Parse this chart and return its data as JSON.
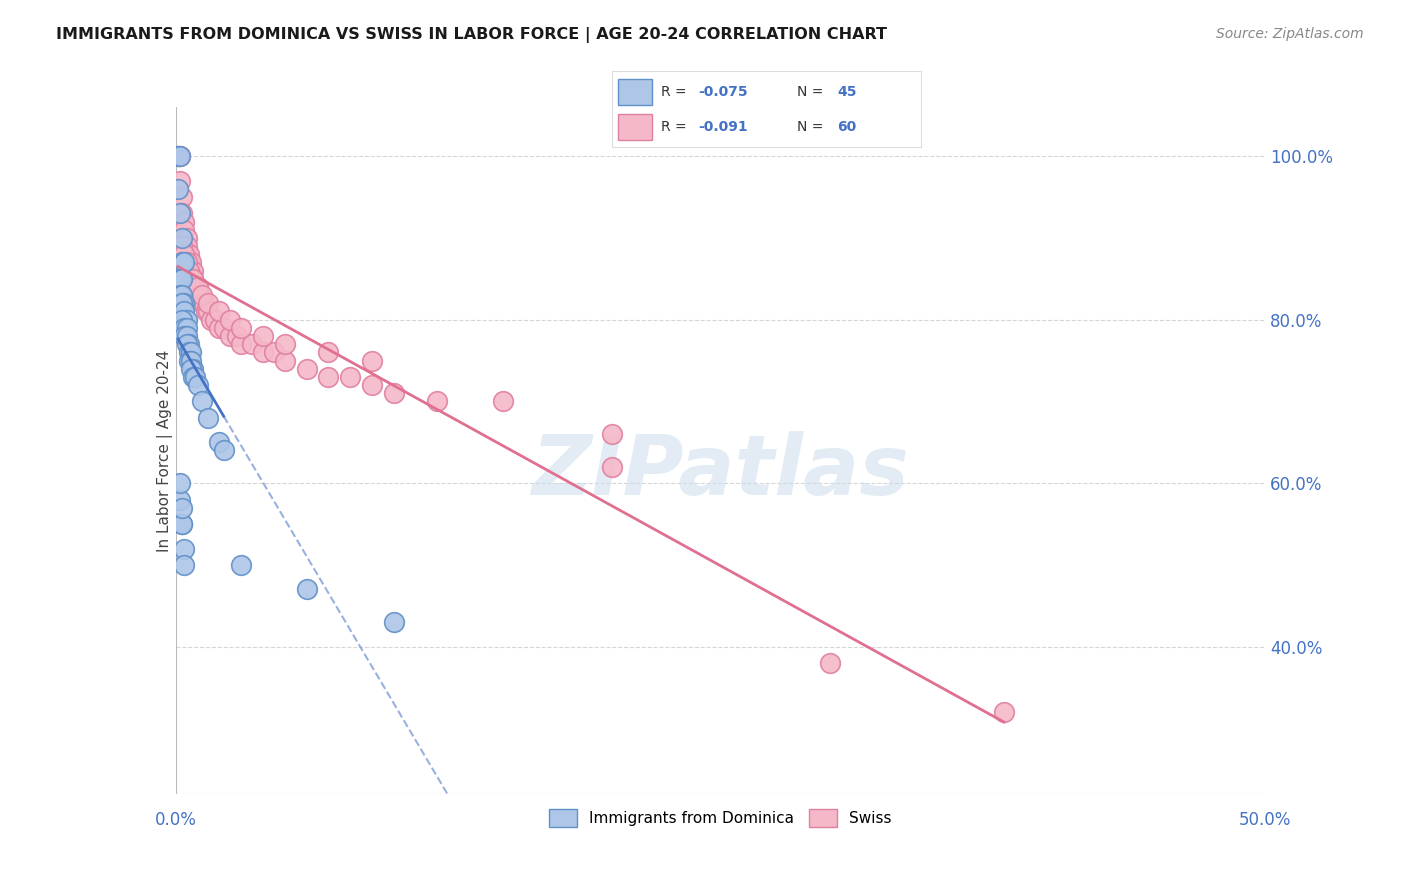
{
  "title": "IMMIGRANTS FROM DOMINICA VS SWISS IN LABOR FORCE | AGE 20-24 CORRELATION CHART",
  "source": "Source: ZipAtlas.com",
  "ylabel": "In Labor Force | Age 20-24",
  "xlim": [
    0.0,
    0.5
  ],
  "ylim": [
    0.22,
    1.06
  ],
  "dominica_R": "-0.075",
  "dominica_N": "45",
  "swiss_R": "-0.091",
  "swiss_N": "60",
  "dominica_color": "#aec6e8",
  "swiss_color": "#f5b8c8",
  "dominica_edge_color": "#6090c8",
  "swiss_edge_color": "#e080a0",
  "dominica_line_color": "#4472c4",
  "swiss_line_color": "#e07090",
  "watermark": "ZIPatlas",
  "background_color": "#ffffff",
  "grid_color": "#cccccc",
  "dominica_x": [
    0.001,
    0.002,
    0.001,
    0.002,
    0.003,
    0.003,
    0.004,
    0.002,
    0.003,
    0.002,
    0.003,
    0.004,
    0.003,
    0.004,
    0.005,
    0.003,
    0.004,
    0.005,
    0.004,
    0.005,
    0.006,
    0.005,
    0.006,
    0.007,
    0.006,
    0.007,
    0.008,
    0.007,
    0.008,
    0.009,
    0.01,
    0.012,
    0.015,
    0.02,
    0.022,
    0.002,
    0.003,
    0.003,
    0.004,
    0.004,
    0.002,
    0.003,
    0.03,
    0.06,
    0.1
  ],
  "dominica_y": [
    1.0,
    1.0,
    0.96,
    0.93,
    0.9,
    0.87,
    0.87,
    0.85,
    0.85,
    0.83,
    0.83,
    0.82,
    0.82,
    0.81,
    0.8,
    0.8,
    0.79,
    0.79,
    0.78,
    0.78,
    0.77,
    0.77,
    0.76,
    0.76,
    0.75,
    0.75,
    0.74,
    0.74,
    0.73,
    0.73,
    0.72,
    0.7,
    0.68,
    0.65,
    0.64,
    0.58,
    0.55,
    0.55,
    0.52,
    0.5,
    0.6,
    0.57,
    0.5,
    0.47,
    0.43
  ],
  "swiss_x": [
    0.001,
    0.002,
    0.002,
    0.003,
    0.003,
    0.004,
    0.004,
    0.005,
    0.005,
    0.006,
    0.006,
    0.007,
    0.007,
    0.008,
    0.008,
    0.009,
    0.01,
    0.01,
    0.011,
    0.012,
    0.013,
    0.014,
    0.015,
    0.016,
    0.018,
    0.02,
    0.022,
    0.025,
    0.028,
    0.03,
    0.035,
    0.04,
    0.045,
    0.05,
    0.06,
    0.07,
    0.08,
    0.09,
    0.1,
    0.12,
    0.003,
    0.004,
    0.005,
    0.006,
    0.008,
    0.01,
    0.012,
    0.015,
    0.02,
    0.025,
    0.03,
    0.04,
    0.05,
    0.07,
    0.09,
    0.15,
    0.2,
    0.2,
    0.38,
    0.3
  ],
  "swiss_y": [
    1.0,
    1.0,
    0.97,
    0.95,
    0.93,
    0.92,
    0.91,
    0.9,
    0.89,
    0.88,
    0.87,
    0.87,
    0.86,
    0.86,
    0.85,
    0.84,
    0.84,
    0.83,
    0.83,
    0.82,
    0.82,
    0.81,
    0.81,
    0.8,
    0.8,
    0.79,
    0.79,
    0.78,
    0.78,
    0.77,
    0.77,
    0.76,
    0.76,
    0.75,
    0.74,
    0.73,
    0.73,
    0.72,
    0.71,
    0.7,
    0.89,
    0.88,
    0.87,
    0.86,
    0.85,
    0.84,
    0.83,
    0.82,
    0.81,
    0.8,
    0.79,
    0.78,
    0.77,
    0.76,
    0.75,
    0.7,
    0.66,
    0.62,
    0.32,
    0.38
  ]
}
